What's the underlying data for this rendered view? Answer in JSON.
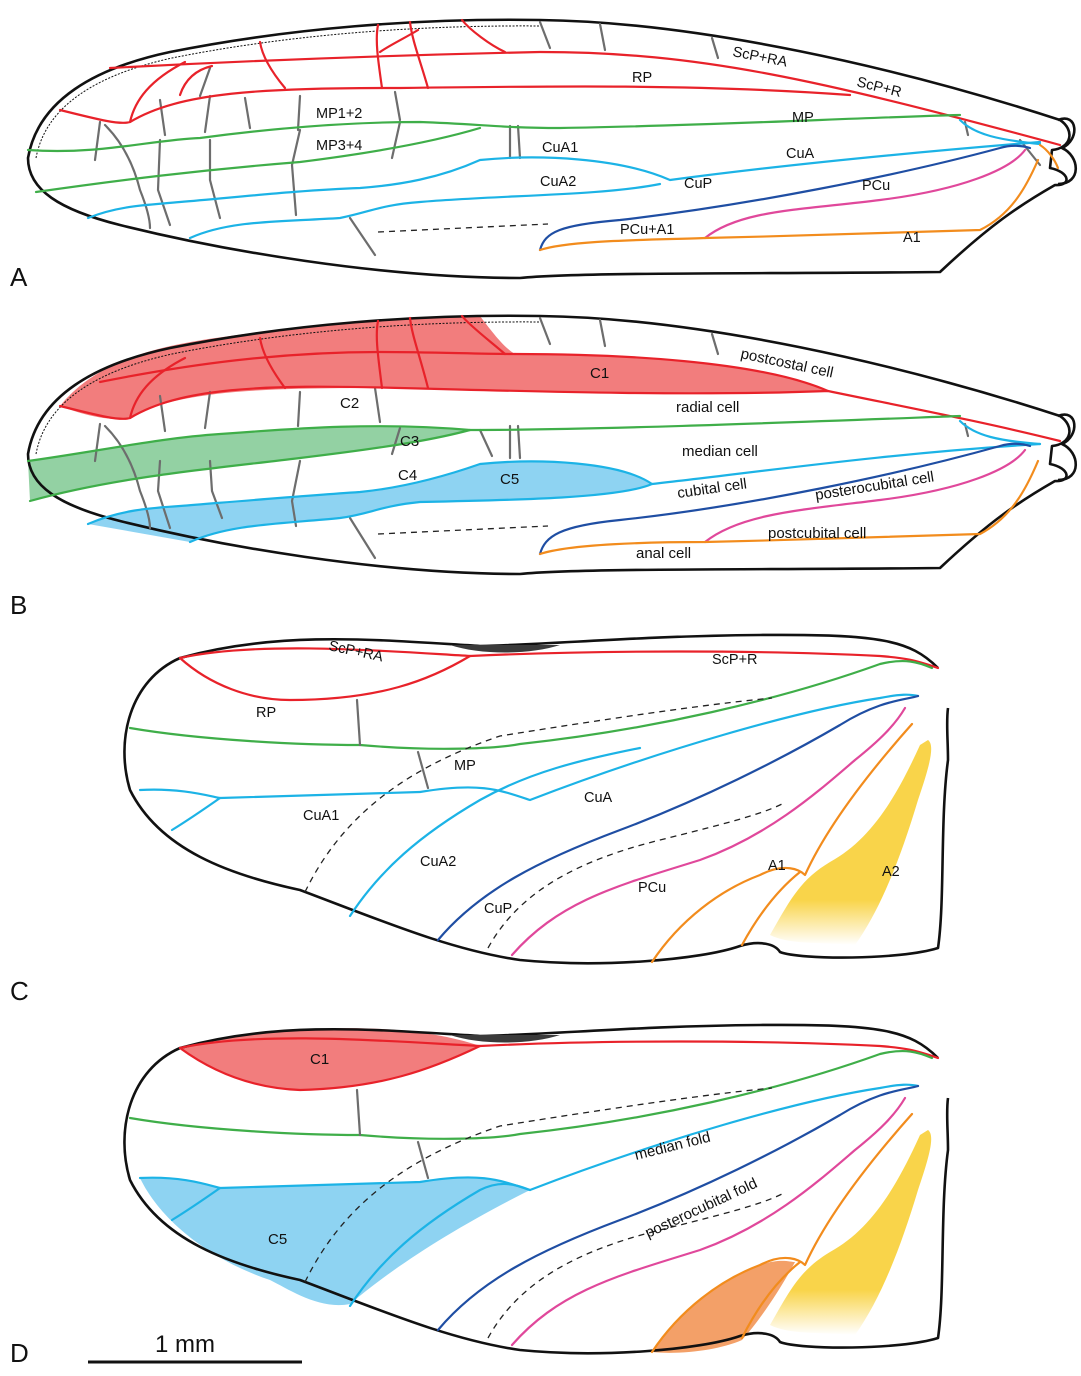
{
  "panels": {
    "a": {
      "letter": "A",
      "veins": {
        "scp_ra": "ScP+RA",
        "scp_r": "ScP+R",
        "rp": "RP",
        "mp12": "MP1+2",
        "mp34": "MP3+4",
        "mp": "MP",
        "cua1": "CuA1",
        "cua2": "CuA2",
        "cua": "CuA",
        "cup": "CuP",
        "pcu": "PCu",
        "pcu_a1": "PCu+A1",
        "a1": "A1"
      }
    },
    "b": {
      "letter": "B",
      "cells": {
        "c1": "C1",
        "c2": "C2",
        "c3": "C3",
        "c4": "C4",
        "c5": "C5",
        "postcostal": "postcostal cell",
        "radial": "radial cell",
        "median": "median cell",
        "cubital": "cubital cell",
        "posterocubital": "posterocubital cell",
        "postcubital": "postcubital cell",
        "anal": "anal cell"
      }
    },
    "c": {
      "letter": "C",
      "veins": {
        "scp_ra": "ScP+RA",
        "scp_r": "ScP+R",
        "rp": "RP",
        "mp": "MP",
        "cua1": "CuA1",
        "cua2": "CuA2",
        "cua": "CuA",
        "cup": "CuP",
        "pcu": "PCu",
        "a1": "A1",
        "a2": "A2"
      }
    },
    "d": {
      "letter": "D",
      "cells": {
        "c1": "C1",
        "c5": "C5"
      },
      "folds": {
        "median": "median fold",
        "posterocubital": "posterocubital fold"
      }
    }
  },
  "scale_bar": {
    "label": "1 mm"
  },
  "colors": {
    "r": "#e8222a",
    "m": "#3fae49",
    "cua": "#1cb3e6",
    "cup": "#1f4ea3",
    "pcu": "#e0489b",
    "a1": "#f28c1d",
    "crossvein": "#6d6d6d",
    "cell_r_fill": "#f27d7d",
    "cell_m_fill": "#93d1a3",
    "cell_cu_fill": "#8ed3f2",
    "cell_a_fill": "#f3a068",
    "a2_fill": "#f9d44a"
  }
}
